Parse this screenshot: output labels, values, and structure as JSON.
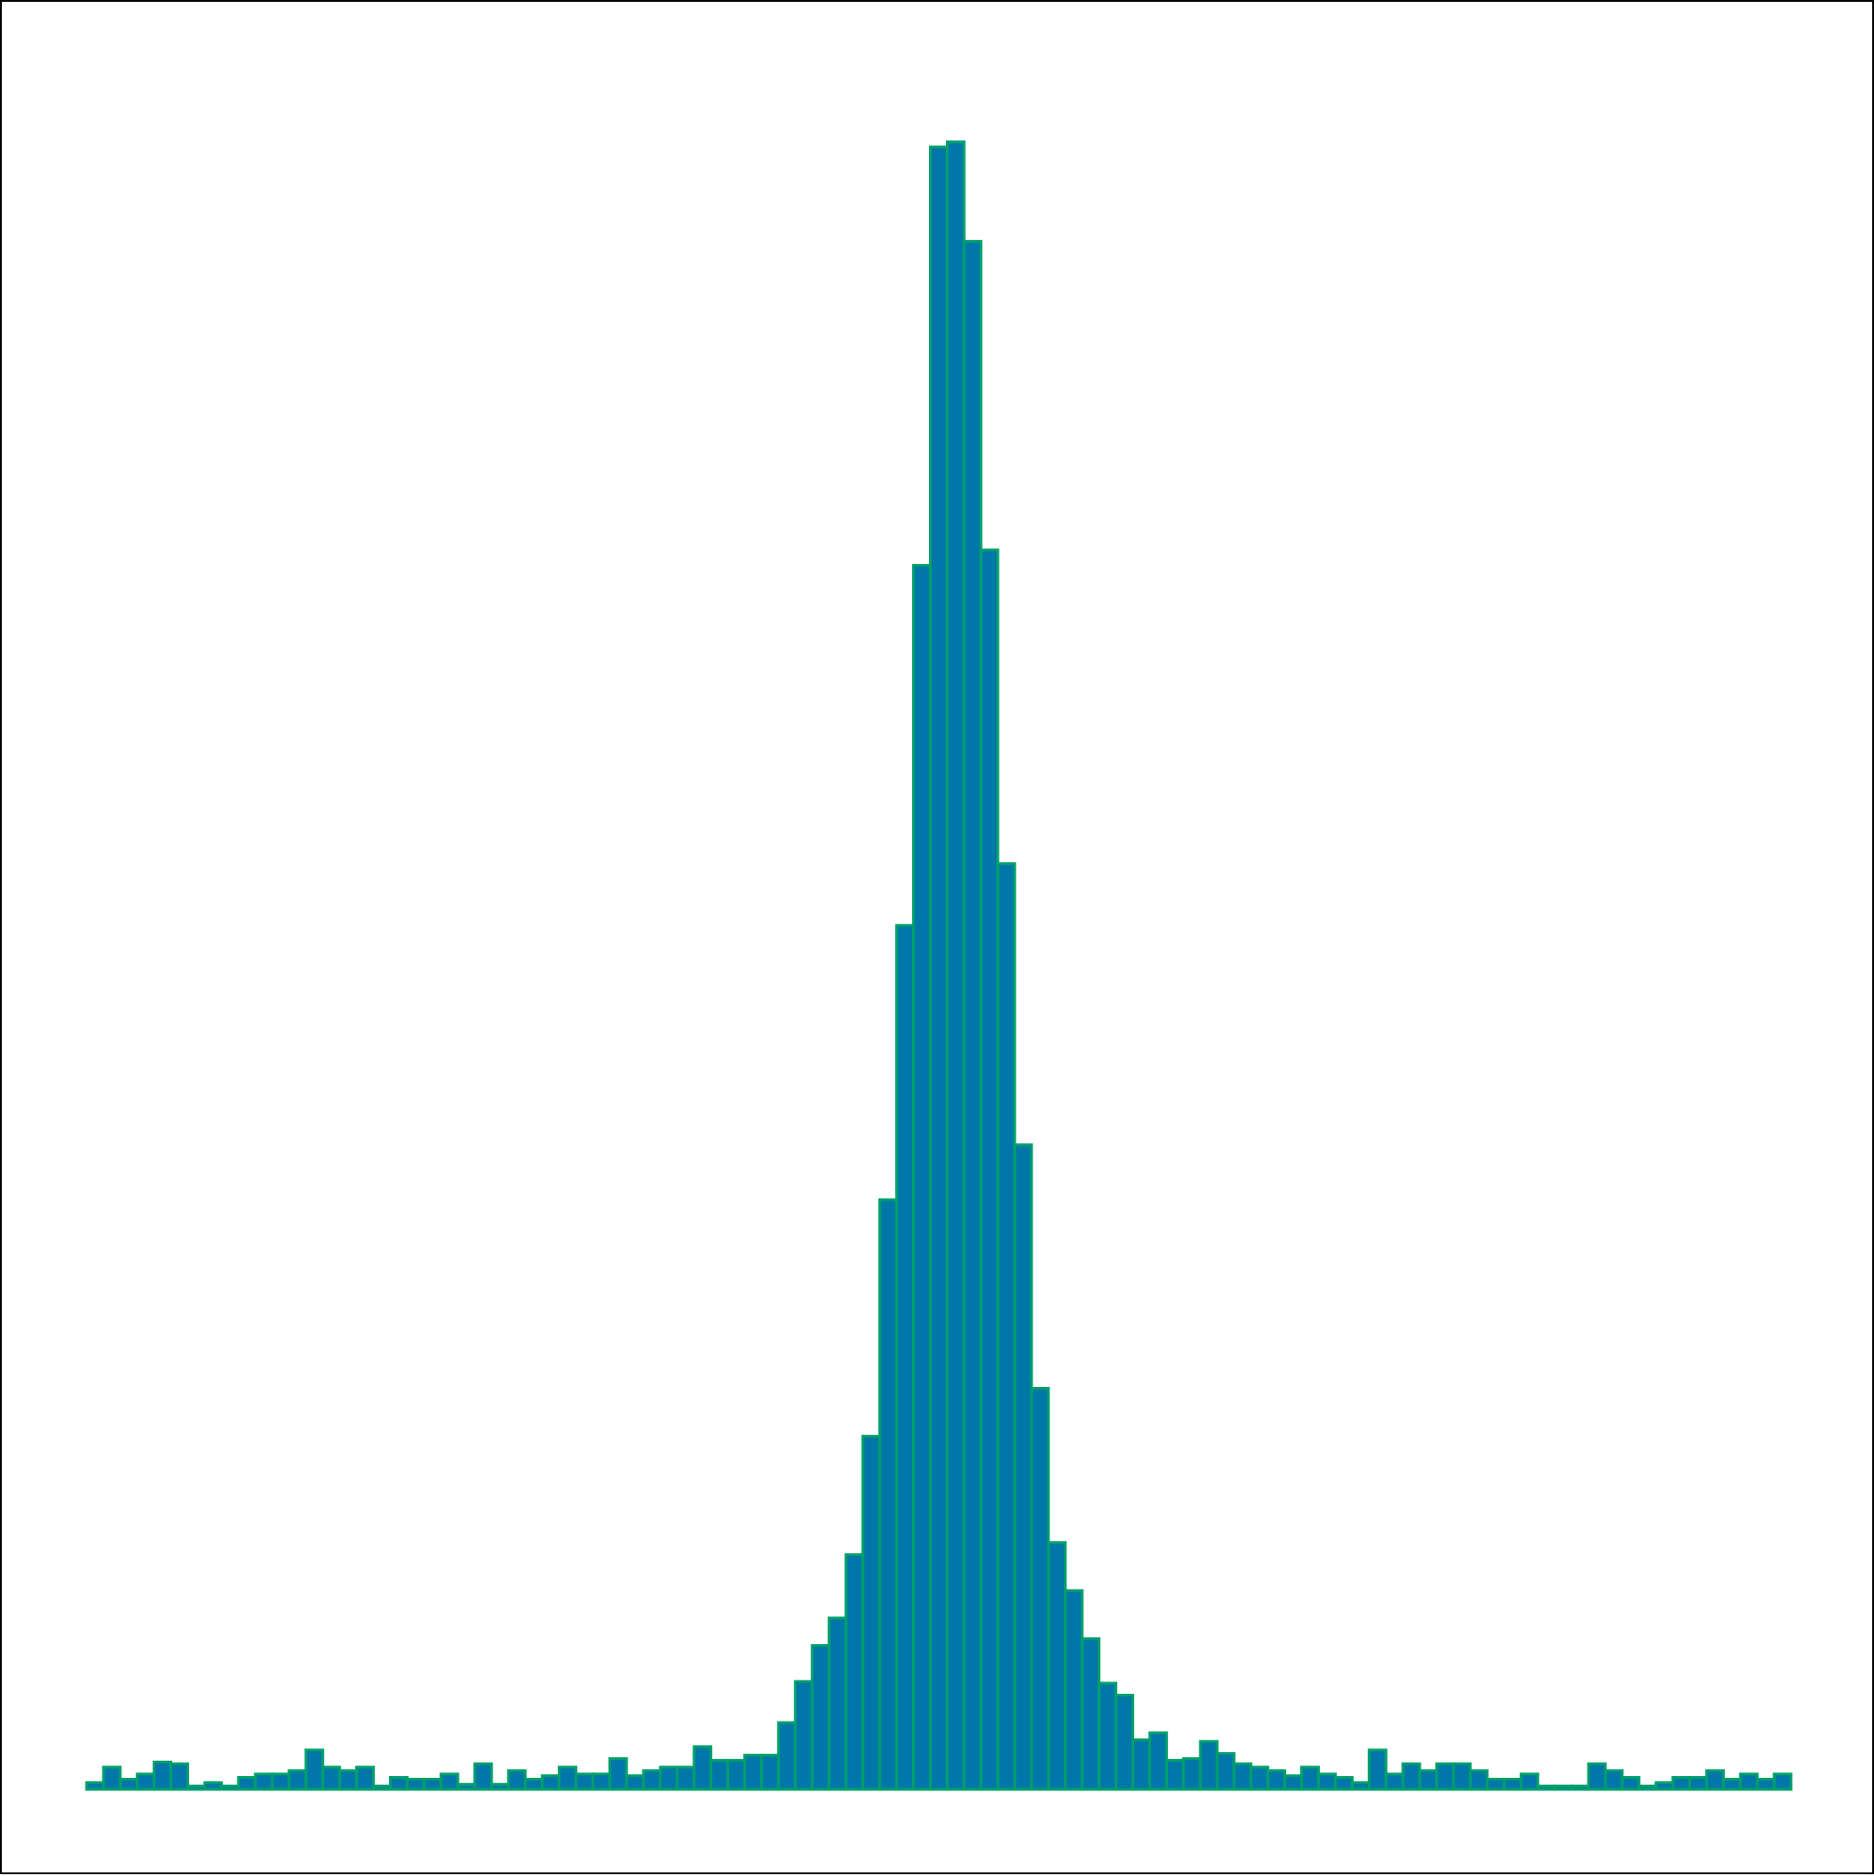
{
  "chart_data": {
    "type": "bar",
    "title": "",
    "xlabel": "",
    "ylabel": "",
    "ylim": [
      0,
      100
    ],
    "grid": false,
    "legend": "none",
    "bar_fill": "#0077a8",
    "bar_edge": "#00a06a",
    "values": [
      0.4,
      1.3,
      0.6,
      0.9,
      1.6,
      1.5,
      0.2,
      0.4,
      0.2,
      0.7,
      0.9,
      0.9,
      1.1,
      2.3,
      1.3,
      1.1,
      1.3,
      0.2,
      0.7,
      0.6,
      0.6,
      0.9,
      0.3,
      1.5,
      0.3,
      1.1,
      0.6,
      0.8,
      1.3,
      0.9,
      0.9,
      1.8,
      0.8,
      1.1,
      1.3,
      1.3,
      2.5,
      1.7,
      1.7,
      2.0,
      2.0,
      3.9,
      6.3,
      8.4,
      10.0,
      13.7,
      20.6,
      34.4,
      50.4,
      71.4,
      95.8,
      96.1,
      90.3,
      72.3,
      54.0,
      37.6,
      23.4,
      14.4,
      11.6,
      8.8,
      6.2,
      5.5,
      2.9,
      3.3,
      1.7,
      1.8,
      2.8,
      2.1,
      1.5,
      1.3,
      1.1,
      0.8,
      1.3,
      0.9,
      0.7,
      0.4,
      2.3,
      0.9,
      1.5,
      1.1,
      1.5,
      1.5,
      1.1,
      0.6,
      0.6,
      0.9,
      0.2,
      0.2,
      0.2,
      1.5,
      1.1,
      0.7,
      0.2,
      0.4,
      0.7,
      0.7,
      1.1,
      0.6,
      0.9,
      0.6,
      0.9
    ]
  }
}
